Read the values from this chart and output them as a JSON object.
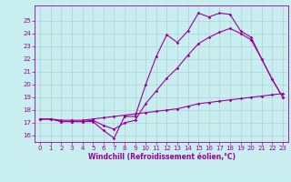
{
  "xlabel": "Windchill (Refroidissement éolien,°C)",
  "background_color": "#c8eef0",
  "line_color": "#990099",
  "grid_color": "#b0d0d8",
  "x_ticks": [
    0,
    1,
    2,
    3,
    4,
    5,
    6,
    7,
    8,
    9,
    10,
    11,
    12,
    13,
    14,
    15,
    16,
    17,
    18,
    19,
    20,
    21,
    22,
    23
  ],
  "ylim": [
    15.5,
    26.2
  ],
  "xlim": [
    -0.5,
    23.5
  ],
  "y_ticks": [
    16,
    17,
    18,
    19,
    20,
    21,
    22,
    23,
    24,
    25
  ],
  "line1": {
    "x": [
      0,
      1,
      2,
      3,
      4,
      5,
      6,
      7,
      8,
      9,
      10,
      11,
      12,
      13,
      14,
      15,
      16,
      17,
      18,
      19,
      20,
      21,
      22,
      23
    ],
    "y": [
      17.3,
      17.3,
      17.1,
      17.1,
      17.1,
      17.1,
      16.4,
      15.8,
      17.5,
      17.5,
      20.0,
      22.2,
      23.9,
      23.3,
      24.2,
      25.6,
      25.3,
      25.6,
      25.5,
      24.2,
      23.7,
      22.0,
      20.4,
      19.0
    ]
  },
  "line2": {
    "x": [
      0,
      1,
      2,
      3,
      4,
      5,
      6,
      7,
      8,
      9,
      10,
      11,
      12,
      13,
      14,
      15,
      16,
      17,
      18,
      19,
      20,
      21,
      22,
      23
    ],
    "y": [
      17.3,
      17.3,
      17.1,
      17.1,
      17.1,
      17.2,
      16.8,
      16.5,
      17.0,
      17.2,
      18.5,
      19.5,
      20.5,
      21.3,
      22.3,
      23.2,
      23.7,
      24.1,
      24.4,
      24.0,
      23.5,
      22.0,
      20.4,
      19.0
    ]
  },
  "line3": {
    "x": [
      0,
      1,
      2,
      3,
      4,
      5,
      6,
      7,
      8,
      9,
      10,
      11,
      12,
      13,
      14,
      15,
      16,
      17,
      18,
      19,
      20,
      21,
      22,
      23
    ],
    "y": [
      17.3,
      17.3,
      17.2,
      17.2,
      17.2,
      17.3,
      17.4,
      17.5,
      17.6,
      17.7,
      17.8,
      17.9,
      18.0,
      18.1,
      18.3,
      18.5,
      18.6,
      18.7,
      18.8,
      18.9,
      19.0,
      19.1,
      19.2,
      19.3
    ]
  },
  "tick_fontsize": 5,
  "xlabel_fontsize": 5.5,
  "linewidth": 0.8,
  "markersize": 1.8
}
